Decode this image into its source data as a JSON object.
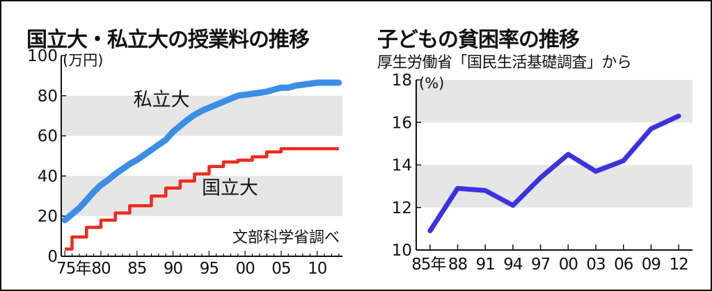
{
  "chart_data": [
    {
      "type": "line",
      "title": "国立大・私立大の授業料の推移",
      "unit_label": "(万円)",
      "source": "文部科学省調べ",
      "x_tick_labels": [
        "75年",
        "80",
        "85",
        "90",
        "95",
        "00",
        "05",
        "10"
      ],
      "x_ticks": [
        1975,
        1980,
        1985,
        1990,
        1995,
        2000,
        2005,
        2010
      ],
      "y_ticks": [
        0,
        20,
        40,
        60,
        80,
        100
      ],
      "xlim": [
        1974.5,
        2013.5
      ],
      "ylim": [
        0,
        100
      ],
      "grid": "alternating-bands",
      "series": [
        {
          "name": "私立大",
          "color": "#3b8ee6",
          "points": [
            [
              1975,
              18
            ],
            [
              1976,
              21
            ],
            [
              1977,
              24
            ],
            [
              1978,
              28
            ],
            [
              1979,
              32
            ],
            [
              1980,
              35.5
            ],
            [
              1981,
              38
            ],
            [
              1982,
              41
            ],
            [
              1983,
              43.5
            ],
            [
              1984,
              46
            ],
            [
              1985,
              48
            ],
            [
              1986,
              50.5
            ],
            [
              1987,
              53
            ],
            [
              1988,
              55.5
            ],
            [
              1989,
              58
            ],
            [
              1990,
              62
            ],
            [
              1991,
              65
            ],
            [
              1992,
              68
            ],
            [
              1993,
              70.5
            ],
            [
              1994,
              72.5
            ],
            [
              1995,
              74
            ],
            [
              1996,
              75.5
            ],
            [
              1997,
              77
            ],
            [
              1998,
              78.5
            ],
            [
              1999,
              80
            ],
            [
              2000,
              80.5
            ],
            [
              2001,
              81
            ],
            [
              2002,
              81.5
            ],
            [
              2003,
              82
            ],
            [
              2004,
              83
            ],
            [
              2005,
              84
            ],
            [
              2006,
              84
            ],
            [
              2007,
              85
            ],
            [
              2008,
              85.5
            ],
            [
              2009,
              86
            ],
            [
              2010,
              86.5
            ],
            [
              2011,
              86.5
            ],
            [
              2012,
              86.5
            ],
            [
              2013,
              86.5
            ]
          ]
        },
        {
          "name": "国立大",
          "color": "#ee2a1d",
          "step": true,
          "points": [
            [
              1975,
              3.6
            ],
            [
              1976,
              9.6
            ],
            [
              1978,
              14.4
            ],
            [
              1980,
              18
            ],
            [
              1982,
              21.6
            ],
            [
              1984,
              25.2
            ],
            [
              1987,
              30
            ],
            [
              1989,
              34
            ],
            [
              1991,
              37.5
            ],
            [
              1993,
              41
            ],
            [
              1995,
              44.7
            ],
            [
              1997,
              47
            ],
            [
              1999,
              47.9
            ],
            [
              2001,
              49.6
            ],
            [
              2003,
              52
            ],
            [
              2005,
              53.6
            ],
            [
              2013,
              53.6
            ]
          ]
        }
      ]
    },
    {
      "type": "line",
      "title": "子どもの貧困率の推移",
      "subtitle": "厚生労働省「国民生活基礎調査」から",
      "unit_label": "(%)",
      "x_tick_labels": [
        "85年",
        "88",
        "91",
        "94",
        "97",
        "00",
        "03",
        "06",
        "09",
        "12"
      ],
      "y_ticks": [
        10,
        12,
        14,
        16,
        18
      ],
      "ylim": [
        10,
        18
      ],
      "grid": "alternating-bands",
      "series": [
        {
          "name": "",
          "color": "#3b33e0",
          "x": [
            1985,
            1988,
            1991,
            1994,
            1997,
            2000,
            2003,
            2006,
            2009,
            2012
          ],
          "values": [
            10.9,
            12.9,
            12.8,
            12.1,
            13.4,
            14.5,
            13.7,
            14.2,
            15.7,
            16.3
          ]
        }
      ]
    }
  ]
}
